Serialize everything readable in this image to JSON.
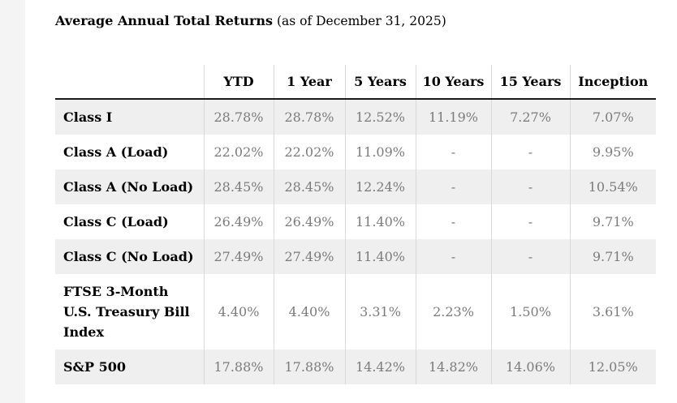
{
  "title": {
    "main": "Average Annual Total Returns",
    "suffix": " (as of December 31, 2025)"
  },
  "table": {
    "columns": [
      "YTD",
      "1 Year",
      "5 Years",
      "10 Years",
      "15 Years",
      "Inception"
    ],
    "rows": [
      {
        "label": "Class I",
        "values": [
          "28.78%",
          "28.78%",
          "12.52%",
          "11.19%",
          "7.27%",
          "7.07%"
        ]
      },
      {
        "label": "Class A (Load)",
        "values": [
          "22.02%",
          "22.02%",
          "11.09%",
          "-",
          "-",
          "9.95%"
        ]
      },
      {
        "label": "Class A (No Load)",
        "values": [
          "28.45%",
          "28.45%",
          "12.24%",
          "-",
          "-",
          "10.54%"
        ]
      },
      {
        "label": "Class C (Load)",
        "values": [
          "26.49%",
          "26.49%",
          "11.40%",
          "-",
          "-",
          "9.71%"
        ]
      },
      {
        "label": "Class C (No Load)",
        "values": [
          "27.49%",
          "27.49%",
          "11.40%",
          "-",
          "-",
          "9.71%"
        ]
      },
      {
        "label": "FTSE 3-Month U.S. Treasury Bill Index",
        "values": [
          "4.40%",
          "4.40%",
          "3.31%",
          "2.23%",
          "1.50%",
          "3.61%"
        ]
      },
      {
        "label": "S&P 500",
        "values": [
          "17.88%",
          "17.88%",
          "14.42%",
          "14.82%",
          "14.06%",
          "12.05%"
        ]
      }
    ]
  },
  "colors": {
    "stripe_bg": "#efefef",
    "separator": "#d9d9d9",
    "header_border": "#1a1a1a",
    "value_text": "#7b7b7b",
    "left_strip": "#f4f4f4"
  }
}
